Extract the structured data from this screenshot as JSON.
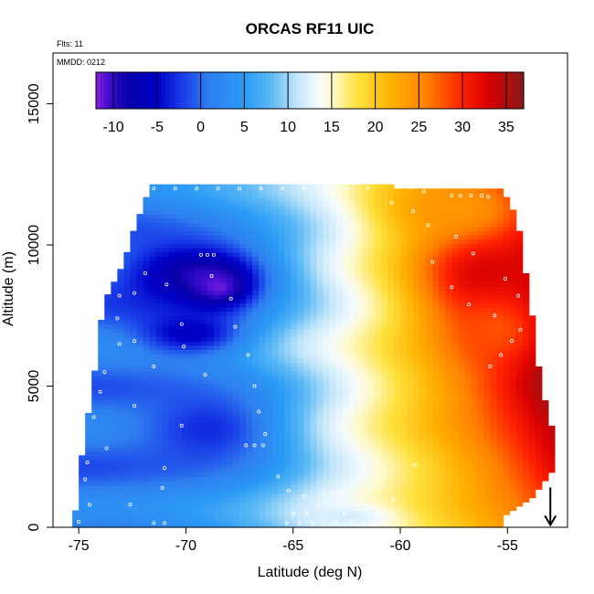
{
  "chart_data": {
    "type": "heatmap",
    "title": "ORCAS RF11 UIC",
    "annotations": {
      "flights": "Flts: 11",
      "date": "MMDD: 0212"
    },
    "xlabel": "Latitude (deg N)",
    "ylabel": "Altitude (m)",
    "xlim": [
      -76.2,
      -52.2
    ],
    "ylim": [
      0,
      16800
    ],
    "x_ticks": [
      -75,
      -70,
      -65,
      -60,
      -55
    ],
    "x_tick_labels": [
      "-75",
      "-70",
      "-65",
      "-60",
      "-55"
    ],
    "y_ticks": [
      0,
      5000,
      10000,
      15000
    ],
    "y_tick_labels": [
      "0",
      "5000",
      "10000",
      "15000"
    ],
    "colorbar": {
      "range": [
        -12,
        37
      ],
      "ticks": [
        -10,
        -5,
        0,
        5,
        10,
        15,
        20,
        25,
        30,
        35
      ],
      "tick_labels": [
        "-10",
        "-5",
        "0",
        "5",
        "10",
        "15",
        "20",
        "25",
        "30",
        "35"
      ],
      "colors": [
        {
          "v": -12,
          "c": "#8b1fe0"
        },
        {
          "v": -10.5,
          "c": "#3c0cd0"
        },
        {
          "v": -8.5,
          "c": "#0a00a8"
        },
        {
          "v": -5,
          "c": "#0000c8"
        },
        {
          "v": -2,
          "c": "#1a3ee8"
        },
        {
          "v": 1,
          "c": "#2f7ff0"
        },
        {
          "v": 5,
          "c": "#2a9af5"
        },
        {
          "v": 8,
          "c": "#5ab8f5"
        },
        {
          "v": 11,
          "c": "#c2e6fa"
        },
        {
          "v": 13.5,
          "c": "#f4fbff"
        },
        {
          "v": 15,
          "c": "#fffad0"
        },
        {
          "v": 18,
          "c": "#ffe13c"
        },
        {
          "v": 22,
          "c": "#ffb000"
        },
        {
          "v": 26,
          "c": "#ff7f00"
        },
        {
          "v": 30,
          "c": "#ff2000"
        },
        {
          "v": 33,
          "c": "#d80000"
        },
        {
          "v": 37,
          "c": "#8b1a1a"
        }
      ]
    },
    "domain_boundary": {
      "left_edge": [
        {
          "alt": 100,
          "lat": -75.1
        },
        {
          "alt": 1000,
          "lat": -74.9
        },
        {
          "alt": 2500,
          "lat": -74.7
        },
        {
          "alt": 4000,
          "lat": -74.4
        },
        {
          "alt": 5500,
          "lat": -74.1
        },
        {
          "alt": 7000,
          "lat": -73.9
        },
        {
          "alt": 8200,
          "lat": -73.5
        },
        {
          "alt": 9300,
          "lat": -72.8
        },
        {
          "alt": 10500,
          "lat": -72.3
        },
        {
          "alt": 11700,
          "lat": -71.7
        },
        {
          "alt": 12000,
          "lat": -71.4
        }
      ],
      "right_edge": [
        {
          "alt": 12100,
          "lat": -60.8
        },
        {
          "alt": 12000,
          "lat": -55.4
        },
        {
          "alt": 11500,
          "lat": -55.0
        },
        {
          "alt": 10500,
          "lat": -54.6
        },
        {
          "alt": 9000,
          "lat": -54.3
        },
        {
          "alt": 7500,
          "lat": -54.0
        },
        {
          "alt": 6000,
          "lat": -53.8
        },
        {
          "alt": 4500,
          "lat": -53.4
        },
        {
          "alt": 3200,
          "lat": -53.0
        },
        {
          "alt": 2500,
          "lat": -52.8
        },
        {
          "alt": 1800,
          "lat": -53.2
        },
        {
          "alt": 1000,
          "lat": -54.0
        },
        {
          "alt": 300,
          "lat": -55.5
        }
      ]
    },
    "field_features": [
      {
        "lat": -69.5,
        "alt": 9000,
        "value": -9,
        "sx": 2.6,
        "sy": 900
      },
      {
        "lat": -68.5,
        "alt": 8500,
        "value": -11.5,
        "sx": 1.0,
        "sy": 500
      },
      {
        "lat": -69.8,
        "alt": 6900,
        "value": -6,
        "sx": 1.8,
        "sy": 600
      },
      {
        "lat": -69.0,
        "alt": 3500,
        "value": -3,
        "sx": 2.6,
        "sy": 1200
      },
      {
        "lat": -56.0,
        "alt": 9000,
        "value": 33,
        "sx": 2.0,
        "sy": 1300
      },
      {
        "lat": -57.5,
        "alt": 11300,
        "value": 24,
        "sx": 2.3,
        "sy": 800
      },
      {
        "lat": -55.5,
        "alt": 7000,
        "value": 28,
        "sx": 1.4,
        "sy": 800
      },
      {
        "lat": -62.5,
        "alt": 400,
        "value": 12,
        "sx": 1.5,
        "sy": 300
      }
    ],
    "flight_track_points": [
      {
        "lat": -71.5,
        "alt": 12000
      },
      {
        "lat": -70.5,
        "alt": 12000
      },
      {
        "lat": -69.5,
        "alt": 12000
      },
      {
        "lat": -68.5,
        "alt": 12000
      },
      {
        "lat": -67.5,
        "alt": 12000
      },
      {
        "lat": -66.5,
        "alt": 12000
      },
      {
        "lat": -65.5,
        "alt": 12000
      },
      {
        "lat": -64.5,
        "alt": 12000
      },
      {
        "lat": -63.5,
        "alt": 12000
      },
      {
        "lat": -62.5,
        "alt": 12000
      },
      {
        "lat": -61.5,
        "alt": 12000
      },
      {
        "lat": -60.0,
        "alt": 12100
      },
      {
        "lat": -59.5,
        "alt": 12050
      },
      {
        "lat": -58.9,
        "alt": 11900
      },
      {
        "lat": -57.6,
        "alt": 11750
      },
      {
        "lat": -57.2,
        "alt": 11750
      },
      {
        "lat": -56.7,
        "alt": 11750
      },
      {
        "lat": -56.2,
        "alt": 11750
      },
      {
        "lat": -55.9,
        "alt": 11700
      },
      {
        "lat": -69.3,
        "alt": 9650
      },
      {
        "lat": -69.0,
        "alt": 9650
      },
      {
        "lat": -68.7,
        "alt": 9650
      },
      {
        "lat": -71.9,
        "alt": 9000
      },
      {
        "lat": -68.8,
        "alt": 8900
      },
      {
        "lat": -70.9,
        "alt": 8600
      },
      {
        "lat": -72.4,
        "alt": 8300
      },
      {
        "lat": -73.1,
        "alt": 8200
      },
      {
        "lat": -67.9,
        "alt": 8100
      },
      {
        "lat": -73.2,
        "alt": 7400
      },
      {
        "lat": -70.2,
        "alt": 7200
      },
      {
        "lat": -67.7,
        "alt": 7100
      },
      {
        "lat": -72.4,
        "alt": 6600
      },
      {
        "lat": -73.1,
        "alt": 6500
      },
      {
        "lat": -70.1,
        "alt": 6400
      },
      {
        "lat": -67.1,
        "alt": 6100
      },
      {
        "lat": -71.5,
        "alt": 5700
      },
      {
        "lat": -73.8,
        "alt": 5500
      },
      {
        "lat": -69.1,
        "alt": 5400
      },
      {
        "lat": -66.8,
        "alt": 5000
      },
      {
        "lat": -74.0,
        "alt": 4800
      },
      {
        "lat": -72.4,
        "alt": 4300
      },
      {
        "lat": -66.6,
        "alt": 4100
      },
      {
        "lat": -74.3,
        "alt": 3900
      },
      {
        "lat": -70.2,
        "alt": 3600
      },
      {
        "lat": -66.3,
        "alt": 3300
      },
      {
        "lat": -73.7,
        "alt": 2800
      },
      {
        "lat": -67.2,
        "alt": 2900
      },
      {
        "lat": -66.8,
        "alt": 2900
      },
      {
        "lat": -66.4,
        "alt": 2900
      },
      {
        "lat": -74.6,
        "alt": 2300
      },
      {
        "lat": -71.0,
        "alt": 2100
      },
      {
        "lat": -65.7,
        "alt": 1800
      },
      {
        "lat": -74.7,
        "alt": 1700
      },
      {
        "lat": -71.1,
        "alt": 1400
      },
      {
        "lat": -65.2,
        "alt": 1300
      },
      {
        "lat": -59.3,
        "alt": 2200
      },
      {
        "lat": -74.5,
        "alt": 800
      },
      {
        "lat": -72.6,
        "alt": 800
      },
      {
        "lat": -63.6,
        "alt": 1200
      },
      {
        "lat": -63.2,
        "alt": 1200
      },
      {
        "lat": -62.8,
        "alt": 1200
      },
      {
        "lat": -64.5,
        "alt": 1100
      },
      {
        "lat": -60.3,
        "alt": 1000
      },
      {
        "lat": -63.8,
        "alt": 800
      },
      {
        "lat": -61.4,
        "alt": 700
      },
      {
        "lat": -65.0,
        "alt": 500
      },
      {
        "lat": -64.4,
        "alt": 500
      },
      {
        "lat": -62.6,
        "alt": 500
      },
      {
        "lat": -60.4,
        "alt": 400
      },
      {
        "lat": -75.0,
        "alt": 200
      },
      {
        "lat": -71.5,
        "alt": 150
      },
      {
        "lat": -71.0,
        "alt": 150
      },
      {
        "lat": -65.3,
        "alt": 150
      },
      {
        "lat": -64.7,
        "alt": 150
      },
      {
        "lat": -64.1,
        "alt": 150
      },
      {
        "lat": -63.6,
        "alt": 150
      },
      {
        "lat": -63.0,
        "alt": 150
      },
      {
        "lat": -62.3,
        "alt": 150
      },
      {
        "lat": -61.7,
        "alt": 150
      },
      {
        "lat": -61.2,
        "alt": 150
      },
      {
        "lat": -60.7,
        "alt": 150
      },
      {
        "lat": -60.4,
        "alt": 11500
      },
      {
        "lat": -59.4,
        "alt": 11200
      },
      {
        "lat": -58.7,
        "alt": 10700
      },
      {
        "lat": -57.4,
        "alt": 10300
      },
      {
        "lat": -56.6,
        "alt": 9700
      },
      {
        "lat": -58.5,
        "alt": 9400
      },
      {
        "lat": -55.1,
        "alt": 8800
      },
      {
        "lat": -57.6,
        "alt": 8500
      },
      {
        "lat": -54.5,
        "alt": 8200
      },
      {
        "lat": -56.8,
        "alt": 7900
      },
      {
        "lat": -55.6,
        "alt": 7500
      },
      {
        "lat": -54.4,
        "alt": 7000
      },
      {
        "lat": -54.8,
        "alt": 6600
      },
      {
        "lat": -55.3,
        "alt": 6100
      },
      {
        "lat": -55.8,
        "alt": 5700
      }
    ],
    "marker": {
      "type": "arrow-down",
      "lat": -53.0,
      "alt": 700
    }
  }
}
